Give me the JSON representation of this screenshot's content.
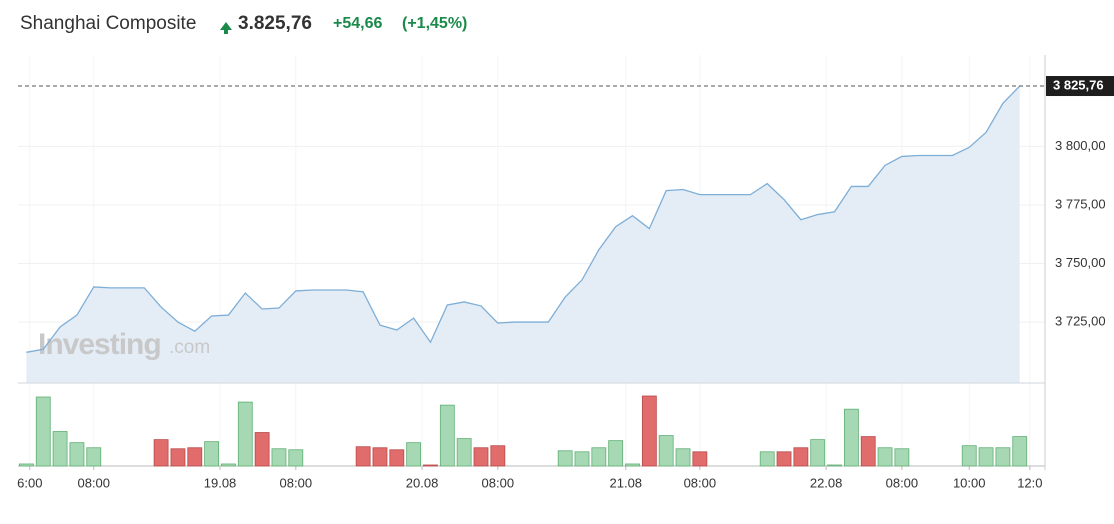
{
  "chart_data": {
    "type": "line",
    "title": "Shanghai Composite",
    "price": "3.825,76",
    "change": "+54,66",
    "change_pct": "(+1,45%)",
    "watermark": [
      "Investing",
      ".com"
    ],
    "last_price": {
      "value": 3825.76,
      "label": "3 825,76"
    },
    "ylim": [
      3699,
      3839
    ],
    "yticks": [
      {
        "value": 3725,
        "label": "3 725,00"
      },
      {
        "value": 3750,
        "label": "3 750,00"
      },
      {
        "value": 3775,
        "label": "3 775,00"
      },
      {
        "value": 3800,
        "label": "3 800,00"
      }
    ],
    "xlim": [
      -0.5,
      60.5
    ],
    "xticks": [
      {
        "value": 0.2,
        "label": "6:00"
      },
      {
        "value": 4,
        "label": "08:00"
      },
      {
        "value": 11.5,
        "label": "19.08"
      },
      {
        "value": 16,
        "label": "08:00"
      },
      {
        "value": 23.5,
        "label": "20.08"
      },
      {
        "value": 28,
        "label": "08:00"
      },
      {
        "value": 35.6,
        "label": "21.08"
      },
      {
        "value": 40,
        "label": "08:00"
      },
      {
        "value": 47.5,
        "label": "22.08"
      },
      {
        "value": 52,
        "label": "08:00"
      },
      {
        "value": 56,
        "label": "10:00"
      },
      {
        "value": 59.6,
        "label": "12:0"
      }
    ],
    "grid": true,
    "series": [
      {
        "name": "Shanghai Composite",
        "color": "#7eaed6",
        "fill": "#e4edf6",
        "values": [
          3712.1,
          3713.4,
          3722.9,
          3728.0,
          3740.0,
          3739.6,
          3739.6,
          3739.6,
          3731.4,
          3725.0,
          3721.1,
          3727.6,
          3728.0,
          3737.4,
          3730.6,
          3731.0,
          3738.3,
          3738.7,
          3738.7,
          3738.7,
          3737.9,
          3723.7,
          3721.6,
          3726.7,
          3716.4,
          3732.3,
          3733.6,
          3731.9,
          3724.6,
          3725.0,
          3725.0,
          3725.0,
          3735.7,
          3743.0,
          3755.9,
          3765.7,
          3770.4,
          3764.9,
          3781.1,
          3781.6,
          3779.4,
          3779.4,
          3779.4,
          3779.4,
          3784.1,
          3777.3,
          3768.7,
          3770.9,
          3772.1,
          3782.9,
          3782.9,
          3791.9,
          3795.7,
          3796.1,
          3796.1,
          3796.1,
          3799.6,
          3806.0,
          3818.4,
          3825.76
        ]
      }
    ],
    "volume": {
      "values": [
        2,
        68,
        34,
        23,
        18,
        null,
        null,
        null,
        26,
        17,
        18,
        24,
        2,
        63,
        33,
        17,
        16,
        null,
        null,
        null,
        19,
        18,
        16,
        23,
        1,
        60,
        27,
        18,
        20,
        null,
        null,
        null,
        15,
        14,
        18,
        25,
        2,
        69,
        30,
        17,
        14,
        null,
        null,
        null,
        14,
        14,
        18,
        26,
        1,
        56,
        29,
        18,
        17,
        null,
        null,
        null,
        20,
        18,
        18,
        29
      ],
      "colors": [
        "#a6d9b3",
        "#a6d9b3",
        "#a6d9b3",
        "#a6d9b3",
        "#a6d9b3",
        null,
        null,
        null,
        "#e06c6c",
        "#e06c6c",
        "#e06c6c",
        "#a6d9b3",
        "#a6d9b3",
        "#a6d9b3",
        "#e06c6c",
        "#a6d9b3",
        "#a6d9b3",
        null,
        null,
        null,
        "#e06c6c",
        "#e06c6c",
        "#e06c6c",
        "#a6d9b3",
        "#e06c6c",
        "#a6d9b3",
        "#a6d9b3",
        "#e06c6c",
        "#e06c6c",
        null,
        null,
        null,
        "#a6d9b3",
        "#a6d9b3",
        "#a6d9b3",
        "#a6d9b3",
        "#a6d9b3",
        "#e06c6c",
        "#a6d9b3",
        "#a6d9b3",
        "#e06c6c",
        null,
        null,
        null,
        "#a6d9b3",
        "#e06c6c",
        "#e06c6c",
        "#a6d9b3",
        "#a6d9b3",
        "#a6d9b3",
        "#e06c6c",
        "#a6d9b3",
        "#a6d9b3",
        null,
        null,
        null,
        "#a6d9b3",
        "#a6d9b3",
        "#a6d9b3",
        "#a6d9b3"
      ]
    }
  }
}
